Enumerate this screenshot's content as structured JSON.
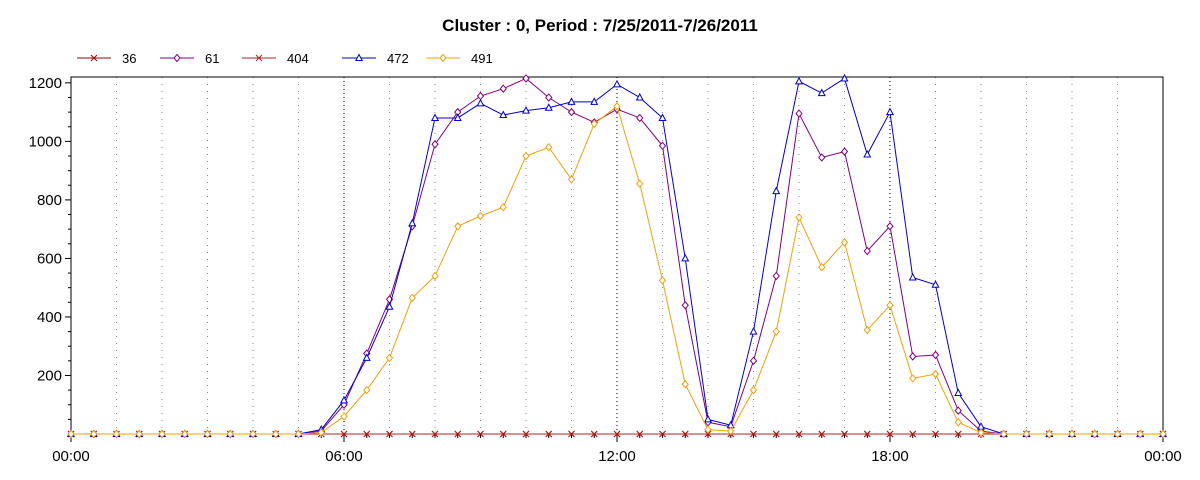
{
  "chart_data": {
    "type": "line",
    "title": "Cluster : 0, Period : 7/25/2011-7/26/2011",
    "xlabel": "",
    "ylabel": "",
    "xlim": [
      0,
      24
    ],
    "ylim": [
      0,
      1220
    ],
    "x_ticks": [
      "00:00",
      "06:00",
      "12:00",
      "18:00",
      "00:00"
    ],
    "y_ticks": [
      "200",
      "400",
      "600",
      "800",
      "1000",
      "1200"
    ],
    "grid": true,
    "legend_position": "top-left",
    "x": [
      "00:00",
      "00:30",
      "01:00",
      "01:30",
      "02:00",
      "02:30",
      "03:00",
      "03:30",
      "04:00",
      "04:30",
      "05:00",
      "05:30",
      "06:00",
      "06:30",
      "07:00",
      "07:30",
      "08:00",
      "08:30",
      "09:00",
      "09:30",
      "10:00",
      "10:30",
      "11:00",
      "11:30",
      "12:00",
      "12:30",
      "13:00",
      "13:30",
      "14:00",
      "14:30",
      "15:00",
      "15:30",
      "16:00",
      "16:30",
      "17:00",
      "17:30",
      "18:00",
      "18:30",
      "19:00",
      "19:30",
      "20:00",
      "20:30",
      "21:00",
      "21:30",
      "22:00",
      "22:30",
      "23:00",
      "23:30",
      "24:00"
    ],
    "series": [
      {
        "name": "36",
        "color": "#a00000",
        "marker": "x",
        "values": [
          0,
          0,
          0,
          0,
          0,
          0,
          0,
          0,
          0,
          0,
          0,
          0,
          0,
          0,
          0,
          0,
          0,
          0,
          0,
          0,
          0,
          0,
          0,
          0,
          0,
          0,
          0,
          0,
          0,
          0,
          0,
          0,
          0,
          0,
          0,
          0,
          0,
          0,
          0,
          0,
          0,
          0,
          0,
          0,
          0,
          0,
          0,
          0,
          0
        ]
      },
      {
        "name": "61",
        "color": "#800080",
        "marker": "diamond",
        "values": [
          0,
          0,
          0,
          0,
          0,
          0,
          0,
          0,
          0,
          0,
          0,
          10,
          100,
          275,
          460,
          710,
          990,
          1100,
          1155,
          1180,
          1215,
          1150,
          1100,
          1065,
          1110,
          1080,
          985,
          440,
          40,
          25,
          250,
          540,
          1095,
          945,
          965,
          625,
          710,
          265,
          270,
          80,
          10,
          0,
          0,
          0,
          0,
          0,
          0,
          0,
          0
        ]
      },
      {
        "name": "404",
        "color": "#b02020",
        "marker": "x",
        "values": [
          0,
          0,
          0,
          0,
          0,
          0,
          0,
          0,
          0,
          0,
          0,
          0,
          0,
          0,
          0,
          0,
          0,
          0,
          0,
          0,
          0,
          0,
          0,
          0,
          0,
          0,
          0,
          0,
          0,
          0,
          0,
          0,
          0,
          0,
          0,
          0,
          0,
          0,
          0,
          0,
          0,
          0,
          0,
          0,
          0,
          0,
          0,
          0,
          0
        ]
      },
      {
        "name": "472",
        "color": "#0000cc",
        "marker": "triangle",
        "values": [
          0,
          0,
          0,
          0,
          0,
          0,
          0,
          0,
          0,
          0,
          0,
          15,
          115,
          260,
          435,
          720,
          1080,
          1080,
          1130,
          1090,
          1105,
          1115,
          1135,
          1135,
          1195,
          1150,
          1080,
          600,
          50,
          30,
          350,
          830,
          1205,
          1165,
          1215,
          955,
          1100,
          535,
          510,
          140,
          25,
          0,
          0,
          0,
          0,
          0,
          0,
          0,
          0
        ]
      },
      {
        "name": "491",
        "color": "#f0a010",
        "marker": "diamond",
        "values": [
          0,
          0,
          0,
          0,
          0,
          0,
          0,
          0,
          0,
          0,
          0,
          5,
          60,
          150,
          260,
          465,
          540,
          710,
          745,
          775,
          950,
          980,
          870,
          1060,
          1120,
          855,
          525,
          170,
          15,
          10,
          150,
          350,
          740,
          570,
          655,
          355,
          440,
          190,
          205,
          40,
          5,
          0,
          0,
          0,
          0,
          0,
          0,
          0,
          0
        ]
      }
    ]
  }
}
